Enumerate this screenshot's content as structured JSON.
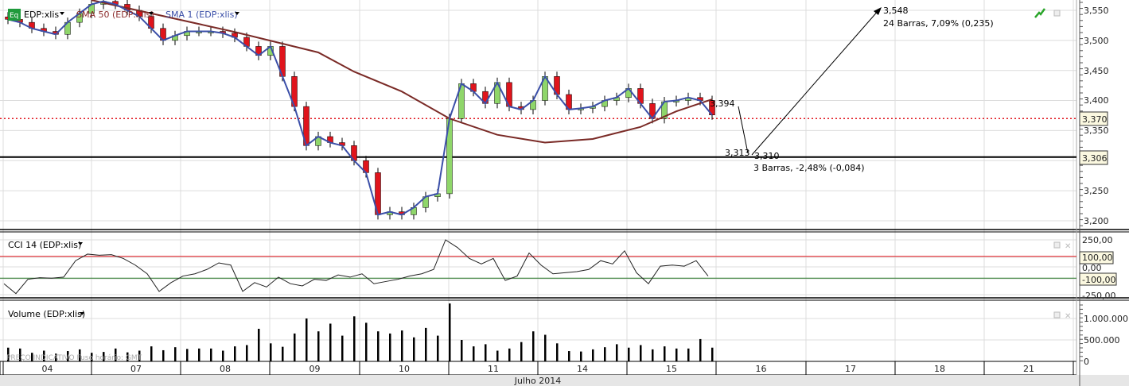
{
  "legend": {
    "logo": "Eq",
    "symbol": "EDP:xlis",
    "sma50": "SMA 50 (EDP:xlis)",
    "sma1": "SMA 1 (EDP:xlis)",
    "cci": "CCI 14 (EDP:xlis)",
    "volume": "Volume (EDP:xlis)",
    "watermark": "PREÇO INDICATIVO   Fuso horário: GMT"
  },
  "colors": {
    "up": "#8fd66a",
    "down": "#e0141c",
    "sma1": "#3b4fa8",
    "sma50": "#7a2a26",
    "cci_upper": "#e0141c",
    "cci_lower": "#2b7a2b",
    "ref_line": "#e0141c"
  },
  "annotations": {
    "last_price": "3,394",
    "start_low": "3,313",
    "pivot": "3,310",
    "down_stats": "3 Barras, -2,48% (-0,084)",
    "target": "3,548",
    "up_stats": "24 Barras, 7,09% (0,235)"
  },
  "price_axis": {
    "ticks": [
      "3,550",
      "3,500",
      "3,450",
      "3,400",
      "3,350",
      "3,250",
      "3,200"
    ],
    "tags": {
      "red_line": "3,370",
      "black_line": "3,306"
    }
  },
  "cci_axis": {
    "ticks": [
      "250,00",
      "0,00",
      "-250,00"
    ],
    "tags": {
      "upper": "100,00",
      "lower": "-100,00"
    }
  },
  "volume_axis": {
    "ticks": [
      "1.000.000",
      "500.000",
      "0"
    ]
  },
  "date_axis": {
    "days": [
      "04",
      "07",
      "08",
      "09",
      "10",
      "11",
      "14",
      "15",
      "16",
      "17",
      "18",
      "21"
    ],
    "month": "Julho 2014"
  },
  "chart_data": {
    "type": "candlestick",
    "title": "EDP:xlis",
    "price_range": [
      3.18,
      3.57
    ],
    "closes": [
      3.535,
      3.53,
      3.52,
      3.515,
      3.51,
      3.53,
      3.545,
      3.56,
      3.565,
      3.56,
      3.55,
      3.54,
      3.52,
      3.5,
      3.508,
      3.515,
      3.515,
      3.515,
      3.512,
      3.505,
      3.49,
      3.475,
      3.49,
      3.44,
      3.39,
      3.325,
      3.34,
      3.33,
      3.325,
      3.3,
      3.28,
      3.21,
      3.215,
      3.21,
      3.222,
      3.24,
      3.245,
      3.37,
      3.428,
      3.415,
      3.395,
      3.43,
      3.39,
      3.385,
      3.4,
      3.44,
      3.41,
      3.385,
      3.387,
      3.39,
      3.4,
      3.405,
      3.42,
      3.395,
      3.37,
      3.398,
      3.4,
      3.405,
      3.4,
      3.376
    ],
    "sma50": [
      [
        7,
        3.567
      ],
      [
        19,
        3.514
      ],
      [
        26,
        3.48
      ],
      [
        29,
        3.448
      ],
      [
        33,
        3.415
      ],
      [
        37,
        3.37
      ],
      [
        41,
        3.343
      ],
      [
        45,
        3.33
      ],
      [
        49,
        3.336
      ],
      [
        53,
        3.356
      ],
      [
        56,
        3.382
      ],
      [
        59,
        3.402
      ]
    ],
    "reference_lines": {
      "red_dotted": 3.37,
      "black": 3.306
    },
    "cci": {
      "range": [
        -250,
        250
      ],
      "levels": [
        100,
        -100
      ],
      "values": [
        -150,
        -240,
        -110,
        -95,
        -100,
        -90,
        60,
        120,
        110,
        115,
        80,
        20,
        -60,
        -220,
        -140,
        -80,
        -60,
        -20,
        40,
        20,
        -220,
        -140,
        -180,
        -90,
        -150,
        -170,
        -110,
        -120,
        -70,
        -90,
        -60,
        -150,
        -130,
        -110,
        -80,
        -60,
        -20,
        250,
        180,
        80,
        30,
        80,
        -120,
        -80,
        130,
        20,
        -60,
        -50,
        -40,
        -20,
        60,
        30,
        150,
        -50,
        -150,
        10,
        20,
        10,
        60,
        -80
      ]
    },
    "volume": {
      "range": [
        0,
        1400000
      ],
      "values": [
        320000,
        300000,
        200000,
        250000,
        180000,
        240000,
        280000,
        200000,
        220000,
        300000,
        210000,
        250000,
        350000,
        260000,
        330000,
        290000,
        300000,
        300000,
        250000,
        350000,
        380000,
        760000,
        420000,
        340000,
        650000,
        1000000,
        700000,
        880000,
        600000,
        1050000,
        900000,
        700000,
        650000,
        720000,
        560000,
        780000,
        600000,
        1350000,
        500000,
        350000,
        400000,
        250000,
        300000,
        450000,
        700000,
        620000,
        420000,
        240000,
        230000,
        280000,
        330000,
        400000,
        320000,
        380000,
        280000,
        350000,
        300000,
        300000,
        520000,
        320000
      ]
    }
  }
}
